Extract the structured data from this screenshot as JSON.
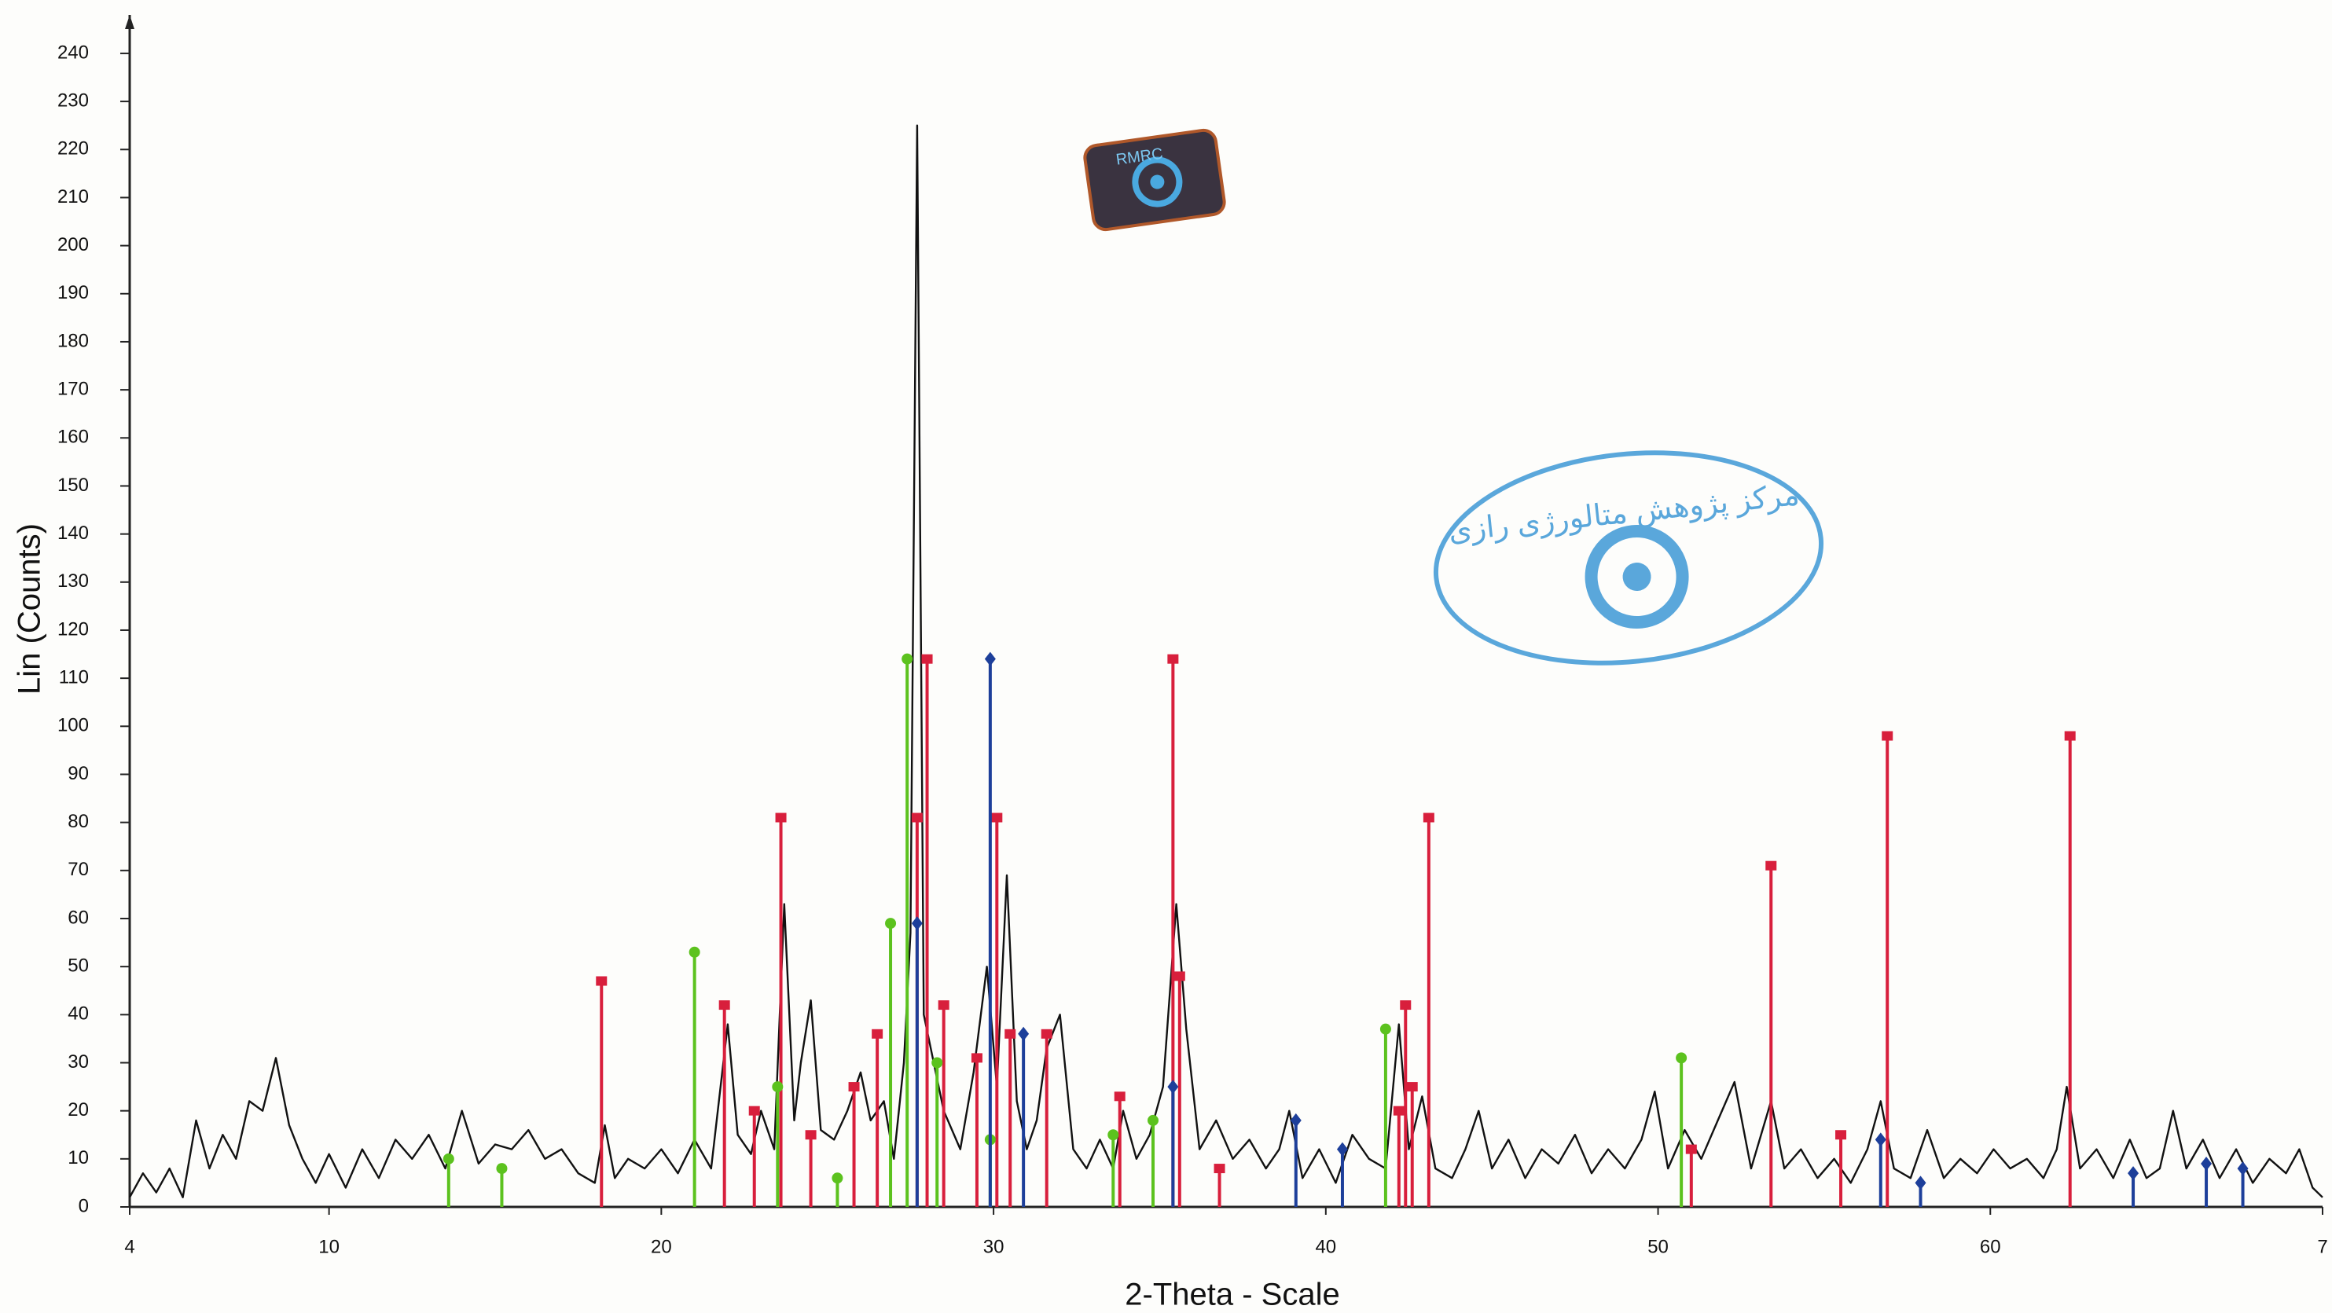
{
  "chart_data": {
    "type": "line",
    "x_label": "2-Theta - Scale",
    "y_label": "Lin (Counts)",
    "annotations": [
      "RMRC",
      "مرکز پژوهش متالورژی رازی"
    ],
    "xlim": [
      4,
      70
    ],
    "ylim": [
      0,
      248
    ],
    "xticks": [
      4,
      10,
      20,
      30,
      40,
      50,
      60,
      {
        "value": 70,
        "label": "7"
      }
    ],
    "yticks": [
      0,
      10,
      20,
      30,
      40,
      50,
      60,
      70,
      80,
      90,
      100,
      110,
      120,
      130,
      140,
      150,
      160,
      170,
      180,
      190,
      200,
      210,
      220,
      230,
      240
    ],
    "series": [
      {
        "color": "#111111",
        "mark": "line",
        "x": [
          4,
          4.4,
          4.8,
          5.2,
          5.6,
          6,
          6.4,
          6.8,
          7.2,
          7.6,
          8,
          8.4,
          8.8,
          9.2,
          9.6,
          10,
          10.5,
          11,
          11.5,
          12,
          12.5,
          13,
          13.5,
          14,
          14.5,
          15,
          15.5,
          16,
          16.5,
          17,
          17.5,
          18,
          18.3,
          18.6,
          19,
          19.5,
          20,
          20.5,
          21,
          21.5,
          22,
          22.3,
          22.7,
          23,
          23.4,
          23.7,
          24,
          24.2,
          24.5,
          24.8,
          25.2,
          25.6,
          26,
          26.3,
          26.7,
          27,
          27.3,
          27.5,
          27.7,
          27.9,
          28.2,
          28.5,
          29,
          29.4,
          29.8,
          30.1,
          30.4,
          30.7,
          31,
          31.3,
          31.6,
          32,
          32.4,
          32.8,
          33.2,
          33.6,
          33.9,
          34.3,
          34.7,
          35.1,
          35.5,
          35.8,
          36.2,
          36.7,
          37.2,
          37.7,
          38.2,
          38.6,
          38.9,
          39.3,
          39.8,
          40.3,
          40.8,
          41.3,
          41.8,
          42.2,
          42.5,
          42.9,
          43.3,
          43.8,
          44.2,
          44.6,
          45,
          45.5,
          46,
          46.5,
          47,
          47.5,
          48,
          48.5,
          49,
          49.5,
          49.9,
          50.3,
          50.8,
          51.3,
          51.8,
          52.3,
          52.8,
          53.4,
          53.8,
          54.3,
          54.8,
          55.3,
          55.8,
          56.3,
          56.7,
          57.1,
          57.6,
          58.1,
          58.6,
          59.1,
          59.6,
          60.1,
          60.6,
          61.1,
          61.6,
          62,
          62.3,
          62.7,
          63.2,
          63.7,
          64.2,
          64.7,
          65.1,
          65.5,
          65.9,
          66.4,
          66.9,
          67.4,
          67.9,
          68.4,
          68.9,
          69.3,
          69.7,
          70
        ],
        "values": [
          2,
          7,
          3,
          8,
          2,
          18,
          8,
          15,
          10,
          22,
          20,
          31,
          17,
          10,
          5,
          11,
          4,
          12,
          6,
          14,
          10,
          15,
          8,
          20,
          9,
          13,
          12,
          16,
          10,
          12,
          7,
          5,
          17,
          6,
          10,
          8,
          12,
          7,
          14,
          8,
          38,
          15,
          11,
          20,
          12,
          63,
          18,
          30,
          43,
          16,
          14,
          20,
          28,
          18,
          22,
          10,
          30,
          57,
          225,
          40,
          30,
          20,
          12,
          28,
          50,
          25,
          69,
          22,
          12,
          18,
          33,
          40,
          12,
          8,
          14,
          8,
          20,
          10,
          15,
          25,
          63,
          37,
          12,
          18,
          10,
          14,
          8,
          12,
          20,
          6,
          12,
          5,
          15,
          10,
          8,
          38,
          12,
          23,
          8,
          6,
          12,
          20,
          8,
          14,
          6,
          12,
          9,
          15,
          7,
          12,
          8,
          14,
          24,
          8,
          16,
          10,
          18,
          26,
          8,
          22,
          8,
          12,
          6,
          10,
          5,
          12,
          22,
          8,
          6,
          16,
          6,
          10,
          7,
          12,
          8,
          10,
          6,
          12,
          25,
          8,
          12,
          6,
          14,
          6,
          8,
          20,
          8,
          14,
          6,
          12,
          5,
          10,
          7,
          12,
          4,
          2
        ]
      },
      {
        "color": "#d81f3c",
        "mark": "stick",
        "x": [
          18.2,
          21.9,
          22.8,
          23.6,
          24.5,
          25.8,
          26.5,
          27.7,
          28.0,
          28.5,
          29.5,
          30.1,
          30.5,
          31.6,
          33.8,
          35.4,
          35.6,
          36.8,
          42.2,
          42.4,
          42.6,
          43.1,
          51.0,
          53.4,
          55.5,
          56.9,
          62.4
        ],
        "values": [
          47,
          42,
          20,
          81,
          15,
          25,
          36,
          81,
          114,
          42,
          31,
          81,
          36,
          36,
          23,
          114,
          48,
          8,
          20,
          42,
          25,
          81,
          12,
          71,
          15,
          98,
          98
        ]
      },
      {
        "color": "#5cc21e",
        "mark": "stick",
        "x": [
          13.6,
          15.2,
          21.0,
          23.5,
          25.3,
          26.9,
          27.4,
          28.3,
          29.9,
          33.6,
          34.8,
          41.8,
          50.7
        ],
        "values": [
          10,
          8,
          53,
          25,
          6,
          59,
          114,
          30,
          14,
          15,
          18,
          37,
          31
        ]
      },
      {
        "color": "#1d3f9a",
        "mark": "stick",
        "x": [
          27.7,
          29.9,
          30.9,
          35.4,
          39.1,
          40.5,
          56.7,
          57.9,
          64.3,
          66.5,
          67.6
        ],
        "values": [
          59,
          114,
          36,
          25,
          18,
          12,
          14,
          5,
          7,
          9,
          8
        ]
      }
    ]
  }
}
